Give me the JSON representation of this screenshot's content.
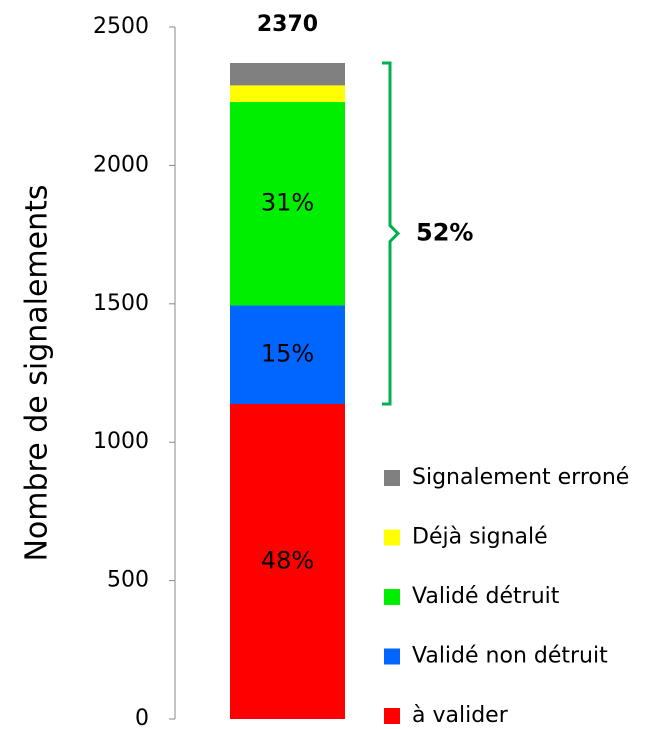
{
  "chart_data": {
    "type": "bar",
    "stacked": true,
    "y_label": "Nombre de signalements",
    "categories": [
      null
    ],
    "total_label": "2370",
    "series": [
      {
        "name": "à valider",
        "color": "#ff0000",
        "values": [
          1138
        ],
        "value_labels": [
          "48%"
        ]
      },
      {
        "name": "Validé non détruit",
        "color": "#0066ff",
        "values": [
          356
        ],
        "value_labels": [
          "15%"
        ]
      },
      {
        "name": "Validé détruit",
        "color": "#00ee00",
        "values": [
          735
        ],
        "value_labels": [
          "31%"
        ]
      },
      {
        "name": "Déjà signalé",
        "color": "#ffff00",
        "values": [
          60
        ]
      },
      {
        "name": "Signalement erroné",
        "color": "#808080",
        "values": [
          81
        ]
      }
    ],
    "annotation": {
      "text": "52%",
      "color": "#00b050"
    },
    "ylim": [
      0,
      2500
    ],
    "yticks": [
      0,
      500,
      1000,
      1500,
      2000,
      2500
    ],
    "legend": "right",
    "legend_order": "reversed"
  }
}
